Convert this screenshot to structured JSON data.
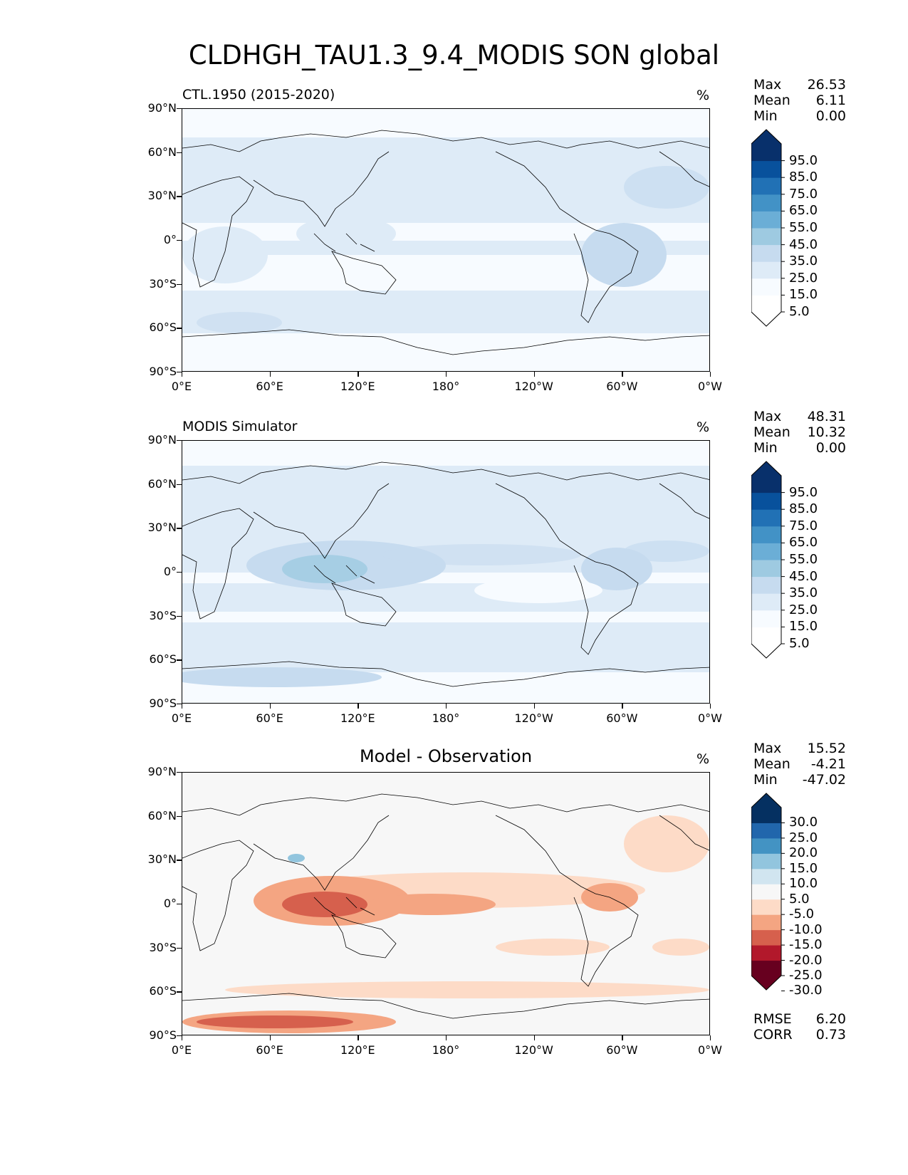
{
  "title": "CLDHGH_TAU1.3_9.4_MODIS SON global",
  "colors": {
    "blues": [
      "#f7fbff",
      "#deebf7",
      "#c6dbef",
      "#9ecae1",
      "#6baed6",
      "#4292c6",
      "#2171b5",
      "#08519c",
      "#08306b"
    ],
    "diverging": [
      "#67001f",
      "#b2182b",
      "#d6604d",
      "#f4a582",
      "#fddbc7",
      "#f7f7f7",
      "#d1e5f0",
      "#92c5de",
      "#4393c3",
      "#2166ac",
      "#053061"
    ],
    "coast": "#000000"
  },
  "axes": {
    "lat_labels": [
      "90°N",
      "60°N",
      "30°N",
      "0°",
      "30°S",
      "60°S",
      "90°S"
    ],
    "lon_labels": [
      "0°E",
      "60°E",
      "120°E",
      "180°",
      "120°W",
      "60°W",
      "0°W"
    ]
  },
  "panels": [
    {
      "title": "CTL.1950 (2015-2020)",
      "title_style": "left",
      "units": "%",
      "stats": {
        "max_label": "Max",
        "max": "26.53",
        "mean_label": "Mean",
        "mean": "6.11",
        "min_label": "Min",
        "min": "0.00"
      },
      "colorbar": {
        "palette": "blues",
        "labels": [
          "95.0",
          "85.0",
          "75.0",
          "65.0",
          "55.0",
          "45.0",
          "35.0",
          "25.0",
          "15.0",
          "5.0"
        ]
      }
    },
    {
      "title": "MODIS Simulator",
      "title_style": "left",
      "units": "%",
      "stats": {
        "max_label": "Max",
        "max": "48.31",
        "mean_label": "Mean",
        "mean": "10.32",
        "min_label": "Min",
        "min": "0.00"
      },
      "colorbar": {
        "palette": "blues",
        "labels": [
          "95.0",
          "85.0",
          "75.0",
          "65.0",
          "55.0",
          "45.0",
          "35.0",
          "25.0",
          "15.0",
          "5.0"
        ]
      }
    },
    {
      "title": "Model - Observation",
      "title_style": "center",
      "units": "%",
      "stats": {
        "max_label": "Max",
        "max": "15.52",
        "mean_label": "Mean",
        "mean": "-4.21",
        "min_label": "Min",
        "min": "-47.02"
      },
      "colorbar": {
        "palette": "diverging",
        "labels": [
          "30.0",
          "25.0",
          "20.0",
          "15.0",
          "10.0",
          "5.0",
          "-5.0",
          "-10.0",
          "-15.0",
          "-20.0",
          "-25.0",
          "-30.0"
        ]
      },
      "metrics": {
        "rmse_label": "RMSE",
        "rmse": "6.20",
        "corr_label": "CORR",
        "corr": "0.73"
      }
    }
  ]
}
